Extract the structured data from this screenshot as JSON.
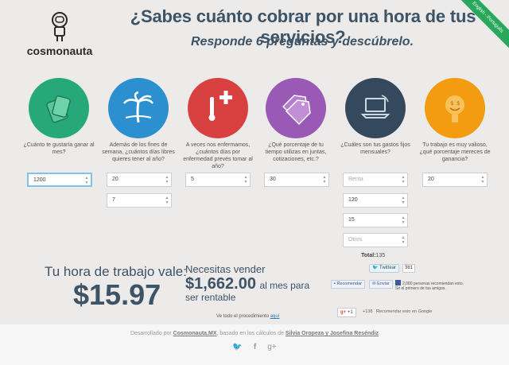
{
  "brand": {
    "name": "cosmonauta"
  },
  "header": {
    "title": "¿Sabes cuánto cobrar por una hora de tus servicios?",
    "subtitle": "Responde 6 preguntas y descúbrelo.",
    "lang_ribbon": "English - Português"
  },
  "colors": {
    "c1": "#27a87a",
    "c2": "#2c8fcf",
    "c3": "#d94040",
    "c4": "#9b59b6",
    "c5": "#34495e",
    "c6": "#f39c12"
  },
  "questions": [
    {
      "icon": "money-icon",
      "text": "¿Cuánto te gustaría ganar al mes?"
    },
    {
      "icon": "palm-tree-icon",
      "text": "Además de los fines de semana, ¿cuántos días libres quieres tener al año?"
    },
    {
      "icon": "thermometer-icon",
      "text": "A veces nos enfermamos, ¿cuántos días por enfermedad prevés tomar al año?"
    },
    {
      "icon": "tags-icon",
      "text": "¿Qué porcentaje de tu tiempo utilizas en juntas, cotizaciones, etc.?"
    },
    {
      "icon": "laptop-icon",
      "text": "¿Cuáles son tus gastos fijos mensuales?"
    },
    {
      "icon": "smiley-money-icon",
      "text": "Tu trabajo es muy valioso, ¿qué porcentaje mereces de ganancia?"
    }
  ],
  "inputs": {
    "salary": "1200",
    "days_off": "20",
    "days_off_extra": "7",
    "sick_days": "5",
    "percent_time": "30",
    "rent_placeholder": "Renta",
    "expense_1": "120",
    "expense_2": "15",
    "others_placeholder": "Otros",
    "profit": "20"
  },
  "total": {
    "label": "Total:",
    "value": "135"
  },
  "result": {
    "hour_label": "Tu hora de trabajo vale:",
    "hour_value": "$15.97",
    "sell_label": "Necesitas vender",
    "sell_value": "$1,662.00",
    "sell_suffix": "al mes para",
    "sell_suffix2": "ser rentable",
    "procedure_text": "Ve todo el procedimiento",
    "procedure_link": "aquí"
  },
  "social": {
    "tweet": "Twittear",
    "tweet_count": "381",
    "fb_recommend": "Recomendar",
    "fb_send": "Enviar",
    "fb_text": "2,080 personas recomiendan esto. Sé el primero de tus amigos.",
    "gplus": "+1",
    "gplus_count": "+138",
    "gplus_text": "Recomendar esto en Google"
  },
  "footer": {
    "prefix": "Desarrollado por",
    "dev": "Cosmonauta.MX",
    "mid": ", basado en los cálculos de",
    "authors": "Silvia Oropeza y Josefina Reséndiz"
  }
}
